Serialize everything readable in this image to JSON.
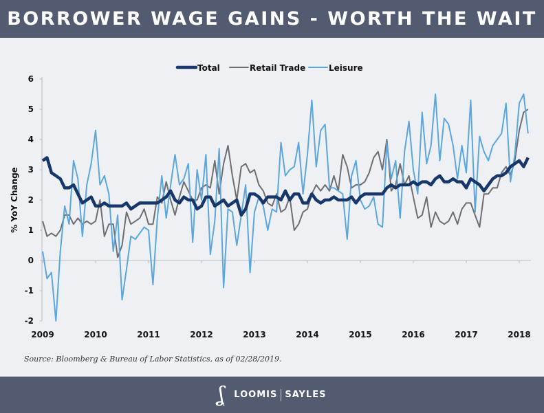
{
  "header": {
    "title": "BORROWER WAGE GAINS - WORTH THE WAIT"
  },
  "source": "Source: Bloomberg & Bureau of Labor Statistics, as of 02/28/2019.",
  "footer": {
    "brand_left": "LOOMIS",
    "brand_right": "SAYLES",
    "logo_mark": "LS"
  },
  "chart_data": {
    "type": "line",
    "title": "",
    "xlabel": "",
    "ylabel": "% YoY Change",
    "x_start": "2009-01",
    "frequency": "monthly",
    "xticks": [
      "2009",
      "2010",
      "2011",
      "2012",
      "2013",
      "2014",
      "2015",
      "2016",
      "2017",
      "2018"
    ],
    "yticks": [
      6,
      5,
      4,
      3,
      2,
      1,
      0,
      -1,
      -2
    ],
    "ylim": [
      -2,
      6
    ],
    "grid": false,
    "legend_position": "top-center",
    "series": [
      {
        "name": "Total",
        "color": "#17376b",
        "values": [
          3.3,
          3.4,
          2.9,
          2.8,
          2.7,
          2.4,
          2.4,
          2.5,
          2.2,
          1.9,
          2.0,
          2.1,
          1.8,
          1.8,
          1.9,
          1.8,
          1.8,
          1.8,
          1.8,
          1.9,
          1.7,
          1.8,
          1.9,
          1.9,
          1.9,
          1.9,
          1.9,
          2.0,
          2.1,
          2.3,
          2.0,
          1.9,
          2.1,
          2.0,
          2.0,
          1.7,
          1.8,
          2.1,
          2.1,
          1.8,
          1.9,
          2.0,
          1.8,
          1.9,
          2.0,
          1.5,
          1.7,
          2.2,
          2.2,
          2.1,
          1.9,
          2.1,
          2.1,
          2.1,
          2.0,
          2.3,
          2.0,
          2.2,
          2.2,
          1.9,
          1.9,
          2.2,
          2.0,
          1.9,
          2.0,
          2.0,
          2.1,
          2.0,
          2.0,
          2.0,
          2.1,
          1.9,
          2.1,
          2.2,
          2.2,
          2.2,
          2.2,
          2.2,
          2.4,
          2.5,
          2.4,
          2.5,
          2.5,
          2.5,
          2.6,
          2.5,
          2.6,
          2.6,
          2.5,
          2.7,
          2.8,
          2.6,
          2.6,
          2.7,
          2.6,
          2.6,
          2.4,
          2.7,
          2.6,
          2.5,
          2.3,
          2.5,
          2.7,
          2.8,
          2.8,
          2.9,
          3.1,
          3.2,
          3.3,
          3.1,
          3.4
        ]
      },
      {
        "name": "Retail Trade",
        "color": "#6d6e71",
        "values": [
          1.3,
          0.8,
          0.9,
          0.8,
          1.0,
          1.5,
          1.5,
          1.2,
          1.4,
          1.2,
          1.3,
          1.2,
          1.3,
          2.0,
          0.8,
          1.2,
          1.2,
          0.1,
          0.5,
          1.6,
          1.2,
          1.3,
          1.4,
          1.7,
          1.2,
          1.2,
          2.1,
          1.9,
          2.6,
          2.0,
          1.5,
          2.1,
          2.6,
          2.3,
          2.0,
          2.0,
          2.4,
          2.5,
          2.4,
          3.3,
          2.2,
          3.2,
          3.8,
          2.8,
          2.0,
          3.1,
          3.2,
          2.9,
          3.0,
          2.5,
          2.3,
          1.9,
          1.8,
          2.2,
          1.6,
          1.7,
          2.1,
          1.0,
          1.2,
          1.6,
          1.7,
          2.2,
          2.5,
          2.3,
          2.5,
          2.3,
          2.8,
          2.3,
          3.5,
          3.1,
          2.4,
          2.5,
          2.5,
          2.6,
          2.9,
          3.4,
          3.6,
          3.0,
          4.0,
          2.3,
          2.5,
          3.2,
          2.5,
          2.8,
          2.1,
          1.4,
          1.5,
          2.1,
          1.1,
          1.6,
          1.3,
          1.2,
          1.3,
          1.6,
          1.2,
          1.7,
          1.9,
          1.9,
          1.5,
          1.1,
          2.2,
          2.2,
          2.4,
          2.4,
          2.9,
          3.1,
          2.8,
          3.3,
          4.3,
          4.9,
          5.0
        ]
      },
      {
        "name": "Leisure",
        "color": "#5aa7de",
        "values": [
          0.3,
          -0.6,
          -0.4,
          -2.0,
          0.3,
          1.8,
          1.2,
          3.3,
          2.7,
          0.8,
          2.5,
          3.2,
          4.3,
          2.5,
          2.8,
          2.2,
          0.3,
          1.5,
          -1.3,
          -0.3,
          0.8,
          0.7,
          0.9,
          1.1,
          1.0,
          -0.8,
          1.4,
          2.8,
          1.4,
          2.5,
          3.5,
          2.5,
          2.7,
          3.2,
          0.6,
          3.0,
          2.0,
          3.5,
          0.2,
          1.3,
          3.7,
          -0.9,
          1.7,
          1.6,
          0.5,
          1.5,
          2.5,
          -0.4,
          1.6,
          2.1,
          1.8,
          1.0,
          1.7,
          1.6,
          3.9,
          2.8,
          3.0,
          3.1,
          3.9,
          2.2,
          3.5,
          5.3,
          3.1,
          4.3,
          4.5,
          2.4,
          2.4,
          2.3,
          2.2,
          0.7,
          2.8,
          3.3,
          2.0,
          1.7,
          1.8,
          2.1,
          1.2,
          1.1,
          3.9,
          2.7,
          3.3,
          1.4,
          3.6,
          4.6,
          3.0,
          2.2,
          4.9,
          3.2,
          3.8,
          5.5,
          3.3,
          4.7,
          4.5,
          3.8,
          2.7,
          3.8,
          2.9,
          5.3,
          1.6,
          4.1,
          3.6,
          3.3,
          3.8,
          4.0,
          4.2,
          5.2,
          2.6,
          3.5,
          5.2,
          5.5,
          4.2
        ]
      }
    ]
  }
}
